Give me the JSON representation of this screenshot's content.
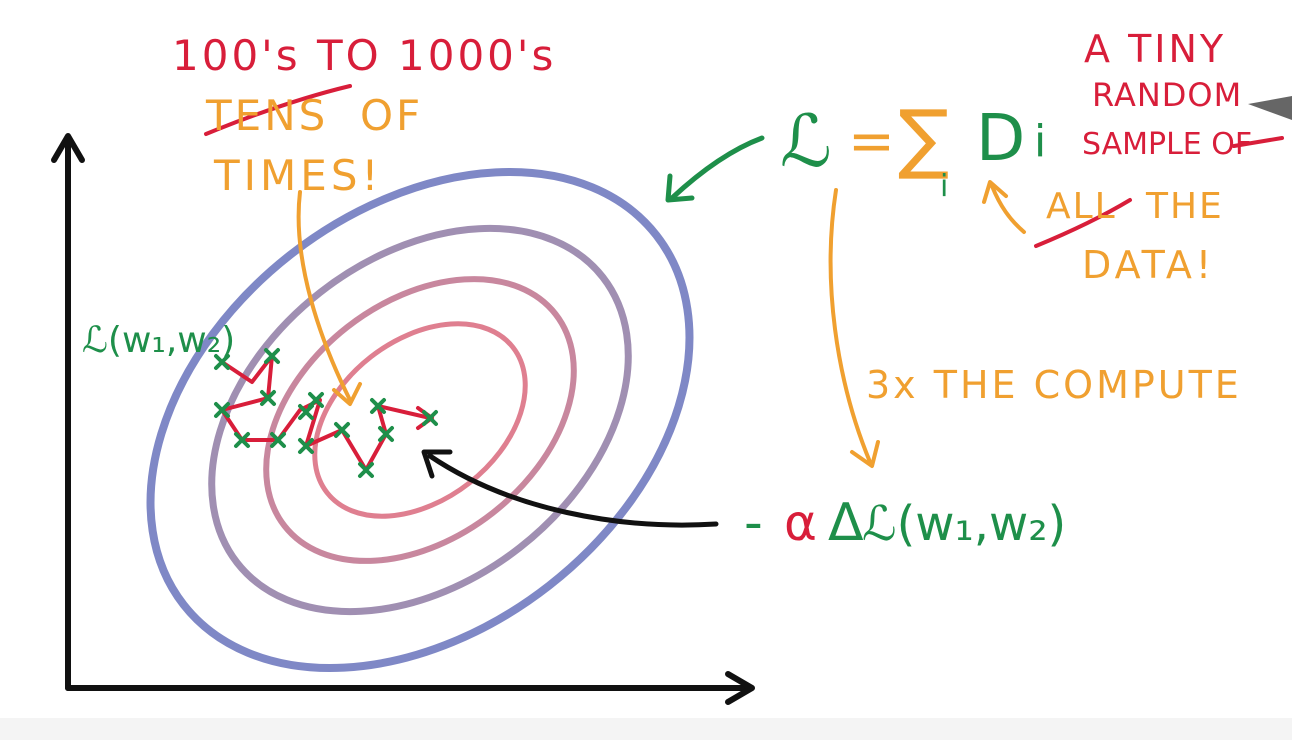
{
  "colors": {
    "red": "#d81e3a",
    "orange": "#f0a030",
    "green": "#1e8f4a",
    "black": "#111111",
    "blue": "#7f88c6",
    "ring_purple": "#a08fb2",
    "ring_mauve": "#c8879e",
    "ring_rose": "#df7f90",
    "ring_pink": "#ec7d86"
  },
  "annotations": {
    "hundreds_to_thousands": "100's TO 1000's",
    "tens_struck": "TENS",
    "of_word": "OF",
    "times": "TIMES!",
    "tiny_line1": "A TINY",
    "tiny_line2": "RANDOM",
    "tiny_line3": "SAMPLE OF",
    "all_struck": "ALL",
    "the_word": "THE",
    "data": "DATA!",
    "compute": "3x THE COMPUTE"
  },
  "formulas": {
    "loss_symbol": "ℒ",
    "equals": "=",
    "sigma": "∑",
    "sum_term": "D",
    "sum_subscript": "i",
    "sum_index": "i",
    "minus": "-",
    "alpha": "α",
    "delta": "Δ",
    "gradient_term": "ℒ(w₁,w₂)",
    "loss_of_weights": "ℒ(w₁,w₂)"
  },
  "icons": {
    "axis": "axis-arrow-icon",
    "contours": "contour-rings",
    "path": "sgd-path",
    "marker": "x-marker-icon"
  }
}
